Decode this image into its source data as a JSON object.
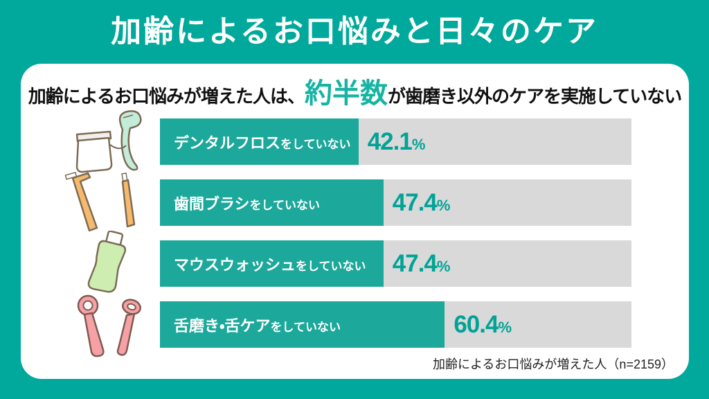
{
  "header": {
    "title": "加齢によるお口悩みと日々のケア"
  },
  "card": {
    "headline": {
      "before": "加齢によるお口悩みが増えた人は、",
      "highlight": "約半数",
      "after": "が歯磨き以外のケアを実施していない"
    },
    "footnote": "加齢によるお口悩みが増えた人（n=2159）"
  },
  "chart_data": {
    "type": "bar",
    "orientation": "horizontal",
    "title": "加齢によるお口悩みが増えた人は、約半数が歯磨き以外のケアを実施していない",
    "categories": [
      "デンタルフロスをしていない",
      "歯間ブラシをしていない",
      "マウスウォッシュをしていない",
      "舌磨き・舌ケアをしていない"
    ],
    "values": [
      42.1,
      47.4,
      47.4,
      60.4
    ],
    "unit": "%",
    "xlim": [
      0,
      100
    ],
    "grid": false,
    "legend": "none",
    "source_note": "加齢によるお口悩みが増えた人（n=2159）",
    "rows": [
      {
        "icon": "dental-floss-icon",
        "label_main": "デンタルフロス",
        "label_suffix": "をしていない",
        "value": 42.1
      },
      {
        "icon": "interdental-brush-icon",
        "label_main": "歯間ブラシ",
        "label_suffix": "をしていない",
        "value": 47.4
      },
      {
        "icon": "mouthwash-icon",
        "label_main": "マウスウォッシュ",
        "label_suffix": "をしていない",
        "value": 47.4
      },
      {
        "icon": "tongue-scraper-icon",
        "label_main": "舌磨き・舌ケア",
        "label_suffix": "をしていない",
        "value": 60.4
      }
    ]
  },
  "colors": {
    "teal": "#00A99B",
    "bar": "#1CA89A",
    "highlight": "#15B4A3",
    "pct": "#00A396",
    "track": "#D9D9D9"
  }
}
